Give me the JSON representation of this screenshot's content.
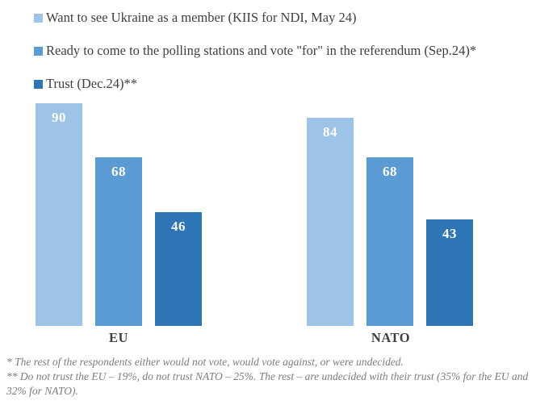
{
  "legend": {
    "items": [
      {
        "label": "Want to see Ukraine as a member (KIIS for NDI, May 24)",
        "color": "#9dc3e6"
      },
      {
        "label": "Ready to come to the polling stations and vote \"for\" in the referendum (Sep.24)*",
        "color": "#5b9bd5"
      },
      {
        "label": "Trust (Dec.24)**",
        "color": "#2e75b6"
      }
    ]
  },
  "chart_data": {
    "type": "bar",
    "categories": [
      "EU",
      "NATO"
    ],
    "series": [
      {
        "name": "Want to see Ukraine as a member (KIIS for NDI, May 24)",
        "color": "#9dc3e6",
        "values": [
          90,
          84
        ]
      },
      {
        "name": "Ready to come to the polling stations and vote \"for\" in the referendum (Sep.24)*",
        "color": "#5b9bd5",
        "values": [
          68,
          68
        ]
      },
      {
        "name": "Trust (Dec.24)**",
        "color": "#2e75b6",
        "values": [
          46,
          43
        ]
      }
    ],
    "ylim": [
      0,
      100
    ],
    "grid": false,
    "axes_visible": false,
    "legend_position": "top-left",
    "value_labels": "inside-top",
    "value_label_color": "#ffffff",
    "category_label_color": "#404040"
  },
  "footnotes": {
    "line1": "* The rest of the respondents either would not vote, would vote against, or were undecided.",
    "line2": "** Do not trust the EU – 19%, do not trust NATO – 25%. The rest – are undecided with their trust (35% for the EU and 32% for NATO)."
  }
}
